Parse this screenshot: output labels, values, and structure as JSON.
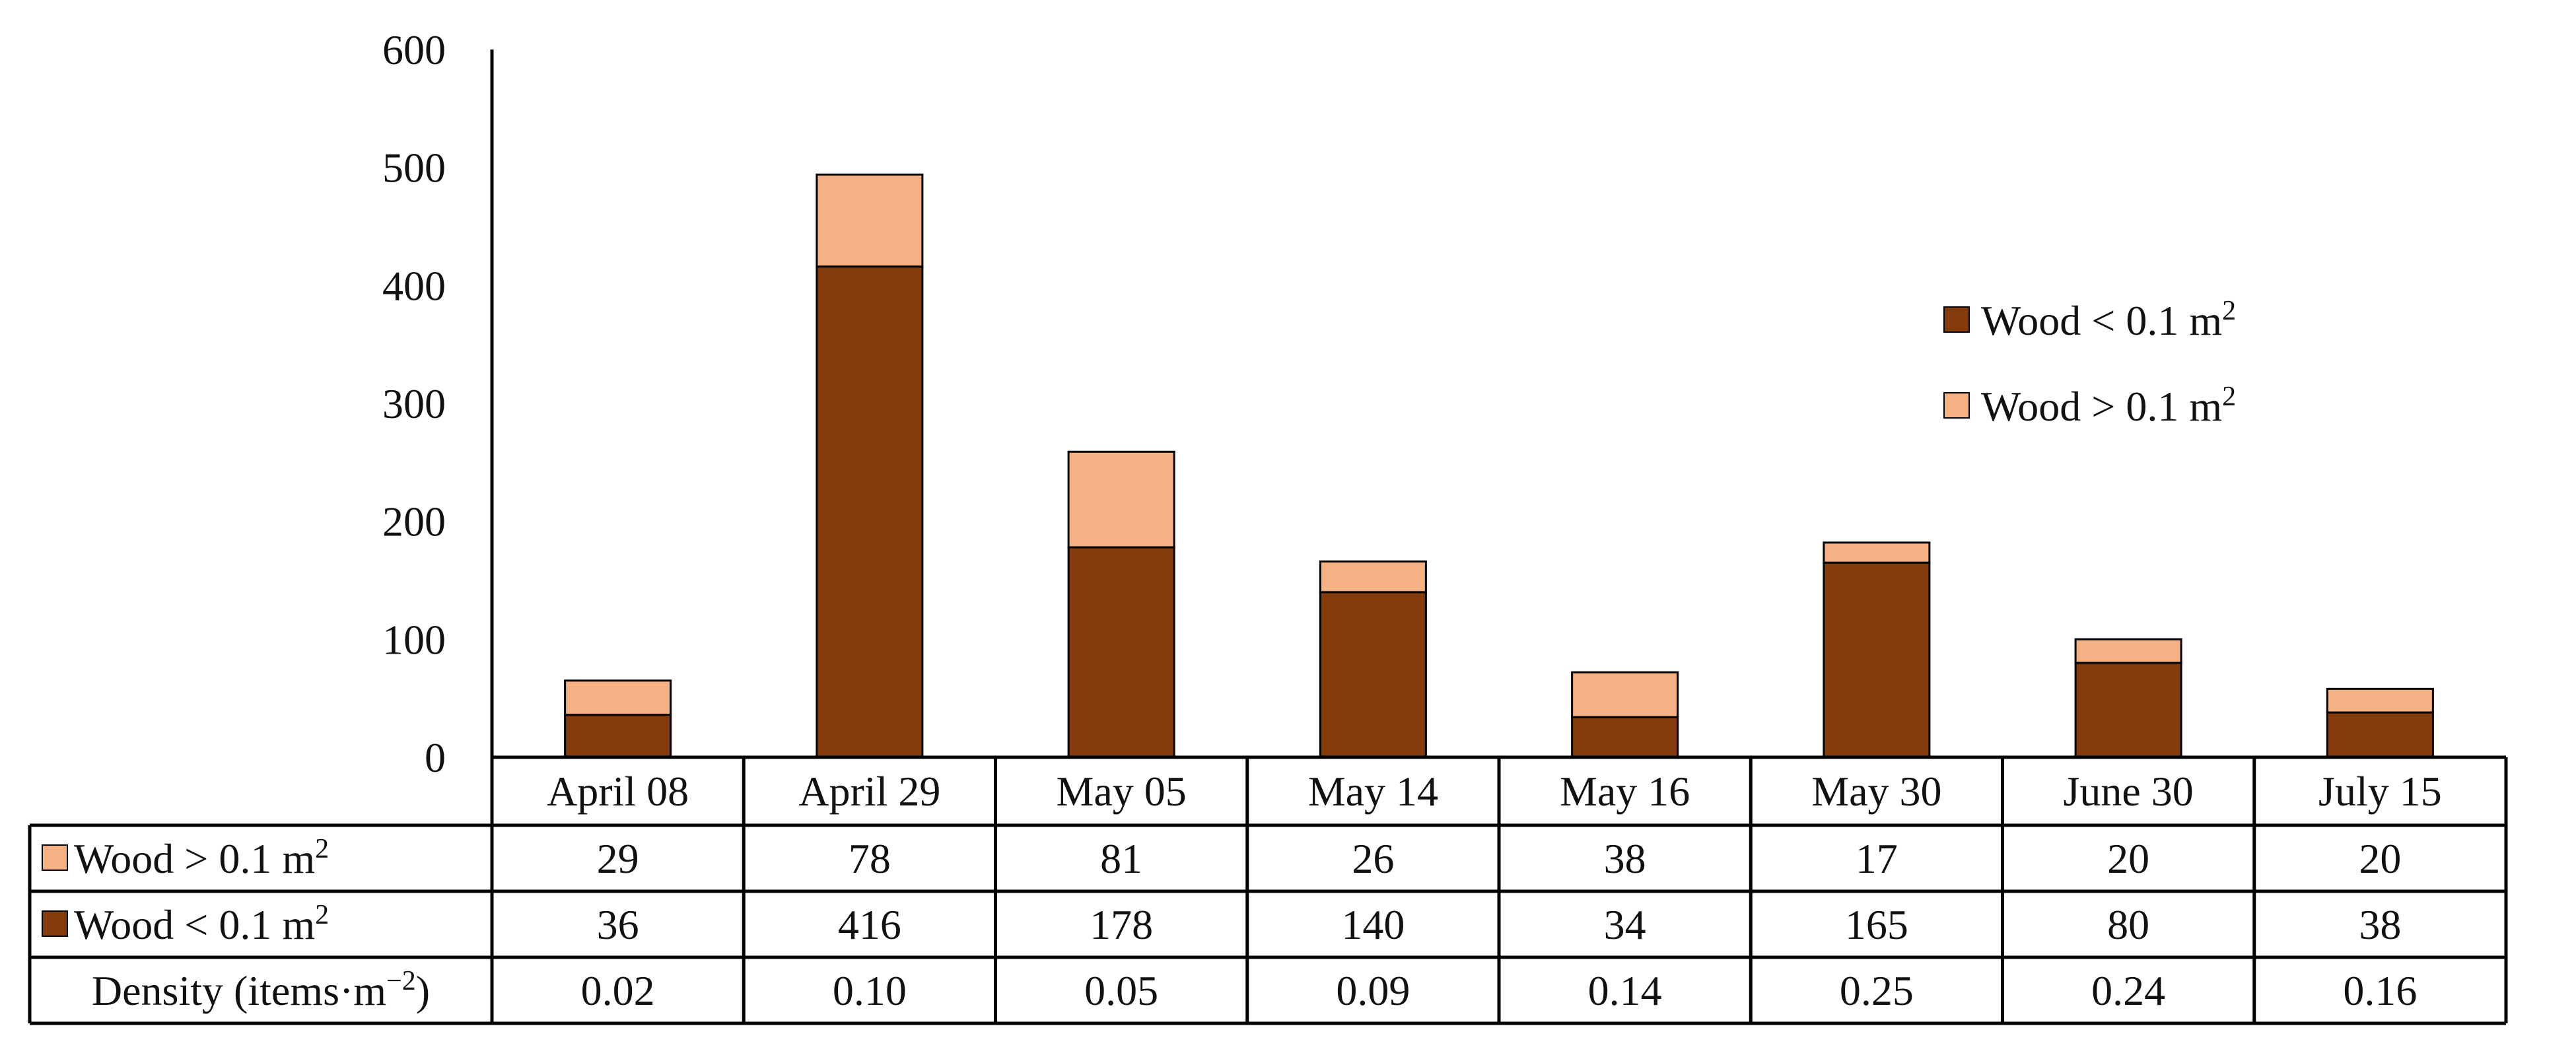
{
  "chart_data": {
    "type": "bar",
    "stacked": true,
    "categories": [
      "April 08",
      "April 29",
      "May 05",
      "May 14",
      "May 16",
      "May 30",
      "June 30",
      "July 15"
    ],
    "series": [
      {
        "name": "Wood < 0.1 m2",
        "values": [
          36,
          416,
          178,
          140,
          34,
          165,
          80,
          38
        ],
        "color": "#843c0c"
      },
      {
        "name": "Wood > 0.1 m2",
        "values": [
          29,
          78,
          81,
          26,
          38,
          17,
          20,
          20
        ],
        "color": "#f4b183"
      }
    ],
    "ylim": [
      0,
      600
    ],
    "yticks": [
      0,
      100,
      200,
      300,
      400,
      500,
      600
    ],
    "legend_position": "top-right",
    "grid": false,
    "data_table": {
      "rows": [
        {
          "label": "Wood > 0.1 m",
          "sup": "2",
          "color": "#f4b183",
          "values": [
            "29",
            "78",
            "81",
            "26",
            "38",
            "17",
            "20",
            "20"
          ]
        },
        {
          "label": "Wood < 0.1 m",
          "sup": "2",
          "color": "#843c0c",
          "values": [
            "36",
            "416",
            "178",
            "140",
            "34",
            "165",
            "80",
            "38"
          ]
        },
        {
          "label": "Density (items·m",
          "sup": "−2",
          "label_end": ")",
          "color": "",
          "values": [
            "0.02",
            "0.10",
            "0.05",
            "0.09",
            "0.14",
            "0.25",
            "0.24",
            "0.16"
          ]
        }
      ]
    },
    "legend": [
      {
        "label": "Wood < 0.1 m",
        "sup": "2",
        "color": "#843c0c"
      },
      {
        "label": "Wood > 0.1 m",
        "sup": "2",
        "color": "#f4b183"
      }
    ]
  }
}
